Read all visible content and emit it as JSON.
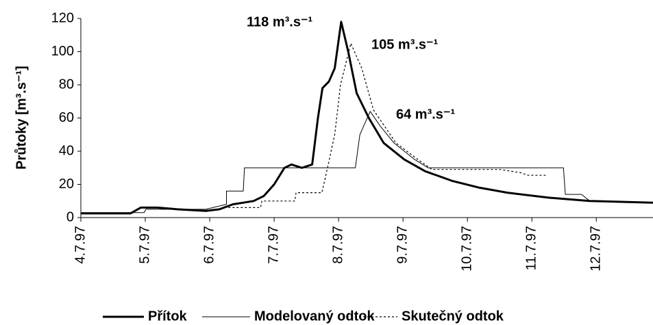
{
  "chart_data": {
    "type": "line",
    "y_label": "Průtoky [m³.s⁻¹]",
    "annotations": [
      "118 m³.s⁻¹",
      "105 m³.s⁻¹",
      "64 m³.s⁻¹"
    ],
    "xlim": [
      4,
      12.88
    ],
    "ylim": [
      0,
      120
    ],
    "yticks": [
      0,
      20,
      40,
      60,
      80,
      100,
      120
    ],
    "xticks": [
      {
        "value": 4,
        "label": "4.7.97"
      },
      {
        "value": 5,
        "label": "5.7.97"
      },
      {
        "value": 6,
        "label": "6.7.97"
      },
      {
        "value": 7,
        "label": "7.7.97"
      },
      {
        "value": 8,
        "label": "8.7.97"
      },
      {
        "value": 9,
        "label": "9.7.97"
      },
      {
        "value": 10,
        "label": "10.7.97"
      },
      {
        "value": 11,
        "label": "11.7.97"
      },
      {
        "value": 12,
        "label": "12.7.97"
      }
    ],
    "series": [
      {
        "name": "Přítok",
        "color": "#000000",
        "width": 3,
        "dash": "none",
        "x": [
          4,
          4.77,
          4.93,
          5.19,
          5.5,
          5.94,
          6.15,
          6.36,
          6.68,
          6.84,
          7.0,
          7.16,
          7.27,
          7.43,
          7.59,
          7.68,
          7.75,
          7.85,
          7.94,
          8.04,
          8.15,
          8.28,
          8.47,
          8.7,
          9.02,
          9.34,
          9.77,
          10.19,
          10.62,
          11.26,
          11.9,
          12.88
        ],
        "values": [
          2.5,
          2.5,
          6,
          6,
          5,
          4,
          5,
          8,
          10,
          13,
          20,
          30,
          32,
          30,
          32,
          60,
          78,
          82,
          90,
          118,
          100,
          75,
          60,
          45,
          35,
          28,
          22,
          18,
          15,
          12,
          10,
          9
        ]
      },
      {
        "name": "Modelovaný odtok",
        "color": "#000000",
        "width": 1,
        "dash": "none",
        "x": [
          4,
          4.98,
          5.01,
          5.94,
          6.26,
          6.26,
          6.52,
          6.54,
          8.26,
          8.33,
          8.49,
          8.65,
          8.86,
          9.18,
          9.39,
          11.49,
          11.52,
          11.77,
          11.9,
          12.88
        ],
        "values": [
          3,
          3,
          5,
          5,
          8,
          16,
          16,
          30,
          30,
          50,
          64,
          55,
          45,
          35,
          30,
          30,
          14,
          14,
          10,
          9
        ]
      },
      {
        "name": "Skutečný odtok",
        "color": "#000000",
        "width": 1.2,
        "dash": "3,3",
        "x": [
          6.29,
          6.79,
          6.81,
          7.32,
          7.34,
          7.74,
          7.8,
          7.94,
          8.03,
          8.19,
          8.36,
          8.54,
          8.89,
          9.23,
          9.45,
          10.51,
          10.83,
          10.94,
          11.22
        ],
        "values": [
          6,
          6,
          10,
          10,
          15,
          15,
          25,
          50,
          80,
          105,
          90,
          65,
          45,
          35,
          29,
          29,
          27,
          25.5,
          25.5
        ]
      }
    ]
  }
}
